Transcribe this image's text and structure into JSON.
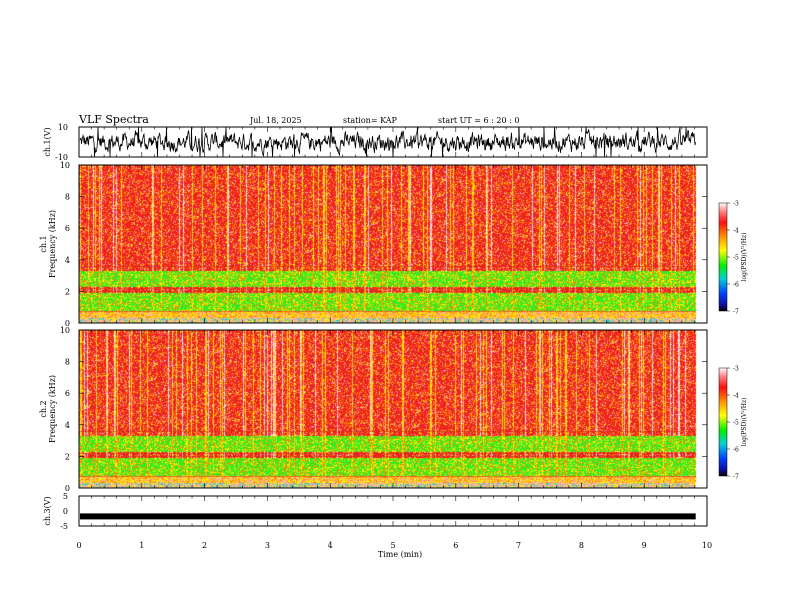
{
  "header": {
    "title": "VLF Spectra",
    "date": "Jul. 18, 2025",
    "station": "station= KAP",
    "start": "start  UT  =   6  : 20 : 0"
  },
  "chart_data": [
    {
      "type": "line",
      "name": "ch1-waveform",
      "ylabel": "ch.1(V)",
      "ylim": [
        -10,
        10
      ],
      "yticks": [
        "10",
        "-10"
      ],
      "xlim": [
        0,
        10
      ]
    },
    {
      "type": "heatmap",
      "name": "ch1-spectrogram",
      "ylabel_line1": "ch.1",
      "ylabel_line2": "Frequency  (kHz)",
      "ylim": [
        0,
        10
      ],
      "yticks": [
        "0",
        "2",
        "4",
        "6",
        "8",
        "10"
      ],
      "data_end_min": 9.82,
      "colorbar": {
        "label": "log(PSD)(V²/Hz)",
        "range": [
          -7,
          -3
        ],
        "ticks": [
          "-3",
          "-4",
          "-5",
          "-6",
          "-7"
        ]
      }
    },
    {
      "type": "heatmap",
      "name": "ch2-spectrogram",
      "ylabel_line1": "ch.2",
      "ylabel_line2": "Frequency  (kHz)",
      "ylim": [
        0,
        10
      ],
      "yticks": [
        "0",
        "2",
        "4",
        "6",
        "8",
        "10"
      ],
      "data_end_min": 9.82,
      "colorbar": {
        "label": "log(PSD)(V²/Hz)",
        "range": [
          -7,
          -3
        ],
        "ticks": [
          "-3",
          "-4",
          "-5",
          "-6",
          "-7"
        ]
      }
    },
    {
      "type": "line",
      "name": "ch3-waveform",
      "ylabel": "ch.3(V)",
      "ylim": [
        -5,
        5
      ],
      "yticks": [
        "5",
        "0",
        "-5"
      ],
      "level": -1.8,
      "xlabel": "Time  (min)",
      "xlim": [
        0,
        10
      ],
      "xticks": [
        "0",
        "1",
        "2",
        "3",
        "4",
        "5",
        "6",
        "7",
        "8",
        "9",
        "10"
      ]
    }
  ],
  "colors": {
    "background": "#ffffff",
    "axis": "#000000",
    "waveform": "#000000",
    "spec_red": "#ee2222",
    "spec_orange": "#ff8800",
    "spec_yellow": "#ffee00",
    "spec_green": "#33ee22",
    "spec_cyan": "#22cccc",
    "spec_pink": "#ffaaaa"
  }
}
